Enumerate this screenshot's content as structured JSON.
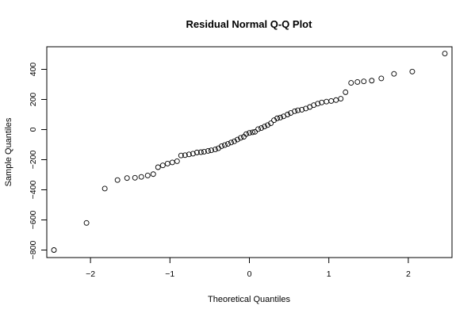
{
  "chart_data": {
    "type": "scatter",
    "title": "Residual Normal Q-Q Plot",
    "xlabel": "Theoretical Quantiles",
    "ylabel": "Sample Quantiles",
    "xlim": [
      -2.55,
      2.55
    ],
    "ylim": [
      -850,
      550
    ],
    "xticks": [
      -2,
      -1,
      0,
      1,
      2
    ],
    "xtick_labels": [
      "−2",
      "−1",
      "0",
      "1",
      "2"
    ],
    "yticks": [
      -800,
      -600,
      -400,
      -200,
      0,
      200,
      400
    ],
    "ytick_labels": [
      "−800",
      "−600",
      "−400",
      "−200",
      "0",
      "200",
      "400"
    ],
    "grid": false,
    "points": [
      [
        -2.46,
        -800
      ],
      [
        -2.05,
        -620
      ],
      [
        -1.82,
        -392
      ],
      [
        -1.66,
        -335
      ],
      [
        -1.54,
        -322
      ],
      [
        -1.44,
        -320
      ],
      [
        -1.36,
        -314
      ],
      [
        -1.28,
        -305
      ],
      [
        -1.21,
        -296
      ],
      [
        -1.15,
        -250
      ],
      [
        -1.09,
        -238
      ],
      [
        -1.03,
        -226
      ],
      [
        -0.97,
        -218
      ],
      [
        -0.91,
        -210
      ],
      [
        -0.86,
        -172
      ],
      [
        -0.81,
        -170
      ],
      [
        -0.76,
        -165
      ],
      [
        -0.71,
        -160
      ],
      [
        -0.66,
        -152
      ],
      [
        -0.61,
        -150
      ],
      [
        -0.57,
        -147
      ],
      [
        -0.52,
        -142
      ],
      [
        -0.48,
        -138
      ],
      [
        -0.43,
        -132
      ],
      [
        -0.39,
        -124
      ],
      [
        -0.35,
        -110
      ],
      [
        -0.31,
        -103
      ],
      [
        -0.27,
        -95
      ],
      [
        -0.23,
        -86
      ],
      [
        -0.19,
        -78
      ],
      [
        -0.15,
        -66
      ],
      [
        -0.11,
        -55
      ],
      [
        -0.07,
        -48
      ],
      [
        -0.04,
        -30
      ],
      [
        0.0,
        -22
      ],
      [
        0.04,
        -18
      ],
      [
        0.07,
        -15
      ],
      [
        0.11,
        3
      ],
      [
        0.15,
        10
      ],
      [
        0.19,
        20
      ],
      [
        0.23,
        30
      ],
      [
        0.27,
        42
      ],
      [
        0.31,
        62
      ],
      [
        0.35,
        75
      ],
      [
        0.39,
        80
      ],
      [
        0.43,
        88
      ],
      [
        0.48,
        100
      ],
      [
        0.52,
        110
      ],
      [
        0.57,
        122
      ],
      [
        0.61,
        128
      ],
      [
        0.66,
        132
      ],
      [
        0.71,
        140
      ],
      [
        0.76,
        150
      ],
      [
        0.81,
        162
      ],
      [
        0.86,
        172
      ],
      [
        0.91,
        180
      ],
      [
        0.97,
        186
      ],
      [
        1.03,
        190
      ],
      [
        1.09,
        196
      ],
      [
        1.15,
        205
      ],
      [
        1.21,
        248
      ],
      [
        1.28,
        310
      ],
      [
        1.36,
        316
      ],
      [
        1.44,
        320
      ],
      [
        1.54,
        325
      ],
      [
        1.66,
        340
      ],
      [
        1.82,
        370
      ],
      [
        2.05,
        385
      ],
      [
        2.46,
        505
      ]
    ]
  }
}
